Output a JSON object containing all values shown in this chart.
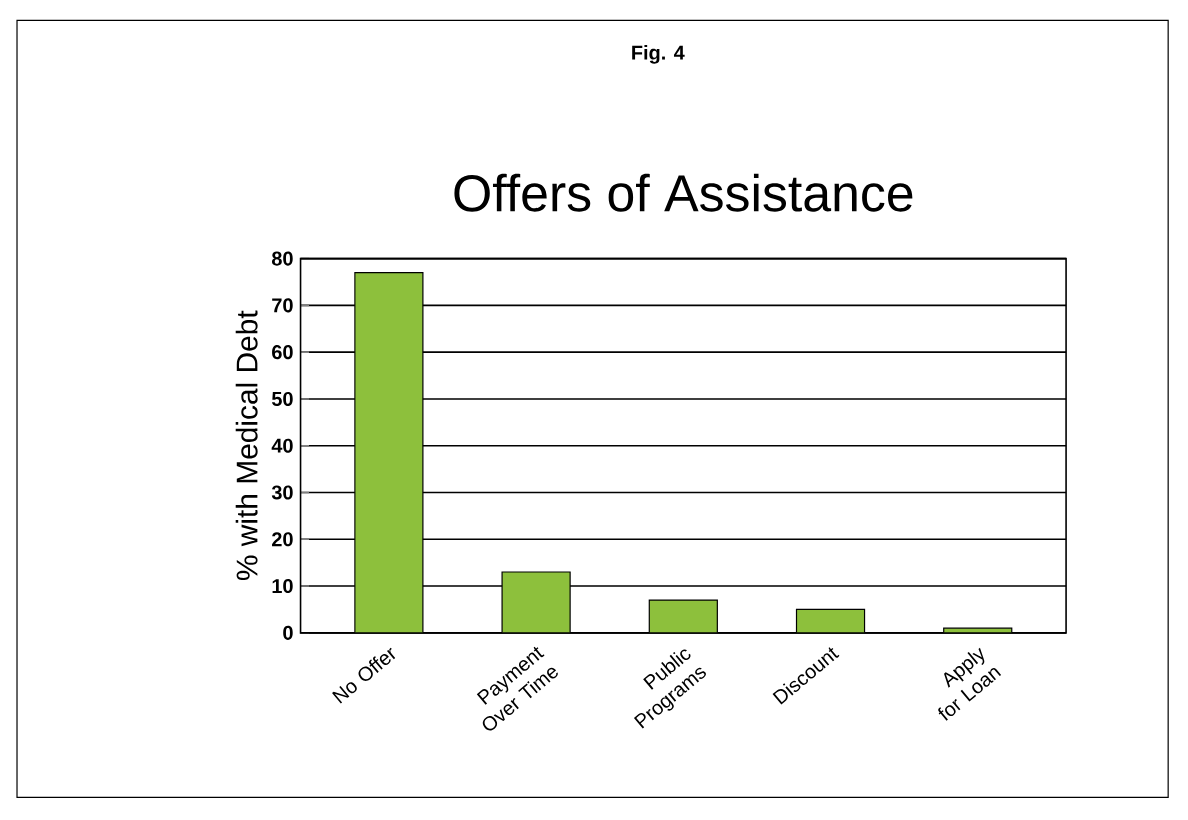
{
  "chart_data": {
    "type": "bar",
    "title": "Offers of Assistance",
    "annotations": [
      "Fig. 4"
    ],
    "ylabel": "% with Medical Debt",
    "categories": [
      "No Offer",
      "Payment Over Time",
      "Public Programs",
      "Discount",
      "Apply for Loan"
    ],
    "values": [
      77,
      13,
      7,
      5,
      1
    ],
    "color": "#8dc03c",
    "ylim": [
      0,
      80
    ],
    "yticks": [
      0,
      10,
      20,
      30,
      40,
      50,
      60,
      70,
      80
    ],
    "grid": "y"
  }
}
